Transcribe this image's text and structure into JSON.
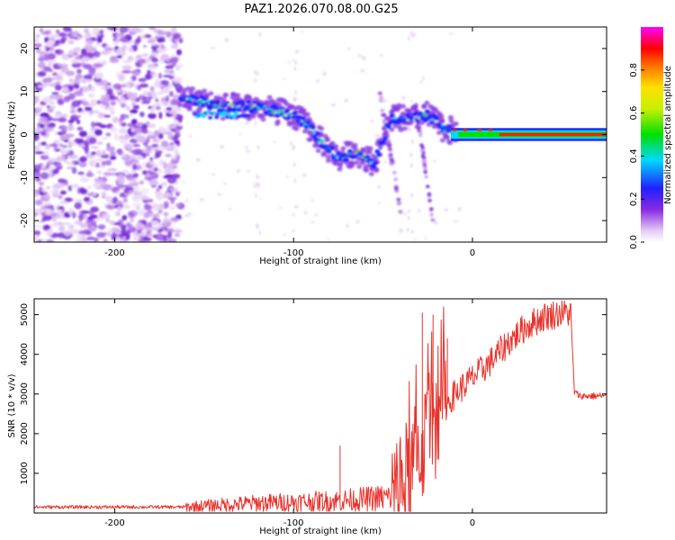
{
  "title": "PAZ1.2026.070.08.00.G25",
  "chart_data": [
    {
      "type": "heatmap",
      "name": "spectrogram",
      "xlabel": "Height of straight line (km)",
      "ylabel": "Frequency (Hz)",
      "xlim": [
        -245,
        75
      ],
      "ylim": [
        -25,
        25
      ],
      "xticks": [
        -200,
        -100,
        0
      ],
      "xtick_labels": [
        "-200",
        "-100",
        "0"
      ],
      "yticks": [
        -20,
        -10,
        0,
        10,
        20
      ],
      "ytick_labels": [
        "-20",
        "-10",
        "0",
        "10",
        "20"
      ],
      "colorbar": {
        "label": "Normalized spectral amplitude",
        "range": [
          0.0,
          1.0
        ],
        "ticks": [
          0.0,
          0.2,
          0.4,
          0.6,
          0.8
        ],
        "tick_labels": [
          "0.0",
          "0.2",
          "0.4",
          "0.6",
          "0.8"
        ],
        "colormap": "rainbow (white-purple-blue-cyan-green-yellow-red-magenta)"
      },
      "signal_track": [
        {
          "x": -162,
          "f": 8.5
        },
        {
          "x": -150,
          "f": 7.5
        },
        {
          "x": -140,
          "f": 6.5
        },
        {
          "x": -125,
          "f": 6.5
        },
        {
          "x": -110,
          "f": 5.5
        },
        {
          "x": -100,
          "f": 4.5
        },
        {
          "x": -92,
          "f": 2.0
        },
        {
          "x": -85,
          "f": -1.5
        },
        {
          "x": -75,
          "f": -5.5
        },
        {
          "x": -65,
          "f": -4.0
        },
        {
          "x": -55,
          "f": -6.5
        },
        {
          "x": -45,
          "f": 4.0
        },
        {
          "x": -35,
          "f": 3.5
        },
        {
          "x": -25,
          "f": 4.5
        },
        {
          "x": -15,
          "f": 1.0
        },
        {
          "x": 0,
          "f": 1.0
        },
        {
          "x": 15,
          "f": 0.5
        },
        {
          "x": 30,
          "f": 0.0
        },
        {
          "x": 75,
          "f": 0.0
        }
      ]
    },
    {
      "type": "line",
      "name": "snr",
      "xlabel": "Height of straight line (km)",
      "ylabel": "SNR (10 * v/v)",
      "xlim": [
        -245,
        75
      ],
      "ylim": [
        0,
        5400
      ],
      "xticks": [
        -200,
        -100,
        0
      ],
      "xtick_labels": [
        "-200",
        "-100",
        "0"
      ],
      "yticks": [
        1000,
        2000,
        3000,
        4000,
        5000
      ],
      "ytick_labels": [
        "1000",
        "2000",
        "3000",
        "4000",
        "5000"
      ],
      "color": "#e8332c",
      "envelope": {
        "x": [
          -245,
          -160,
          -120,
          -80,
          -60,
          -45,
          -40,
          -35,
          -30,
          -25,
          -20,
          -10,
          0,
          10,
          20,
          30,
          40,
          50,
          55,
          57,
          60,
          75
        ],
        "y": [
          150,
          150,
          250,
          300,
          350,
          400,
          600,
          1000,
          1500,
          2000,
          2400,
          3000,
          3400,
          3800,
          4300,
          4700,
          4950,
          5050,
          5050,
          3050,
          2950,
          2950
        ]
      },
      "peaks": [
        {
          "x": -74,
          "y": 1700
        },
        {
          "x": -28,
          "y": 5050
        },
        {
          "x": -22,
          "y": 5000
        },
        {
          "x": -14,
          "y": 4400
        }
      ]
    }
  ]
}
